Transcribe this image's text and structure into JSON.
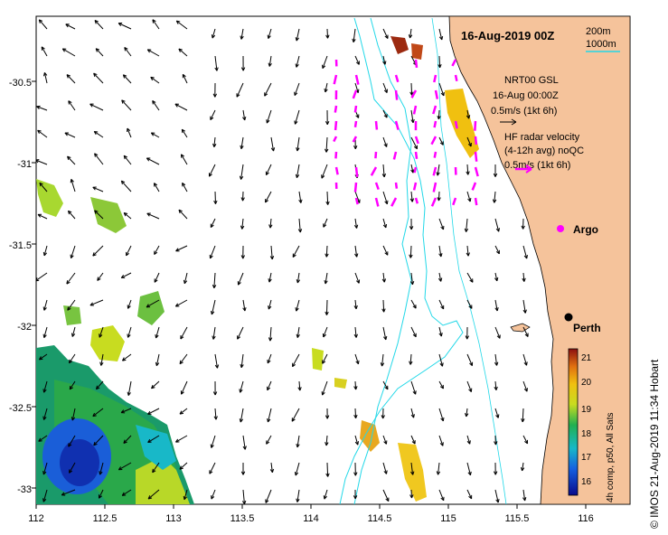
{
  "title": "16-Aug-2019 00Z",
  "scale": {
    "iso1": "200m",
    "iso2": "1000m"
  },
  "legend": {
    "model_line1": "NRT00 GSL",
    "model_line2": "16-Aug 00:00Z",
    "model_scale": "0.5m/s (1kt 6h)",
    "radar_line1": "HF radar velocity",
    "radar_line2": "(4-12h avg) noQC",
    "radar_scale": "0.5m/s (1kt 6h)",
    "argo_label": "Argo"
  },
  "city": "Perth",
  "colorbar": {
    "ticks": [
      "21",
      "20",
      "19",
      "18",
      "17",
      "16"
    ],
    "label": "4h comp, p50, All Sats"
  },
  "credit": "© IMOS 21-Aug-2019 11:34 Hobart",
  "x_axis": {
    "ticks": [
      "112",
      "112.5",
      "113",
      "113.5",
      "114",
      "114.5",
      "115",
      "115.5",
      "116"
    ]
  },
  "y_axis": {
    "ticks": [
      "-30.5",
      "-31",
      "-31.5",
      "-32",
      "-32.5",
      "-33"
    ]
  },
  "colors": {
    "land": "#f5c39b",
    "isobath": "#22d8e8",
    "radar": "#ff00ff",
    "arrow": "#000000"
  }
}
